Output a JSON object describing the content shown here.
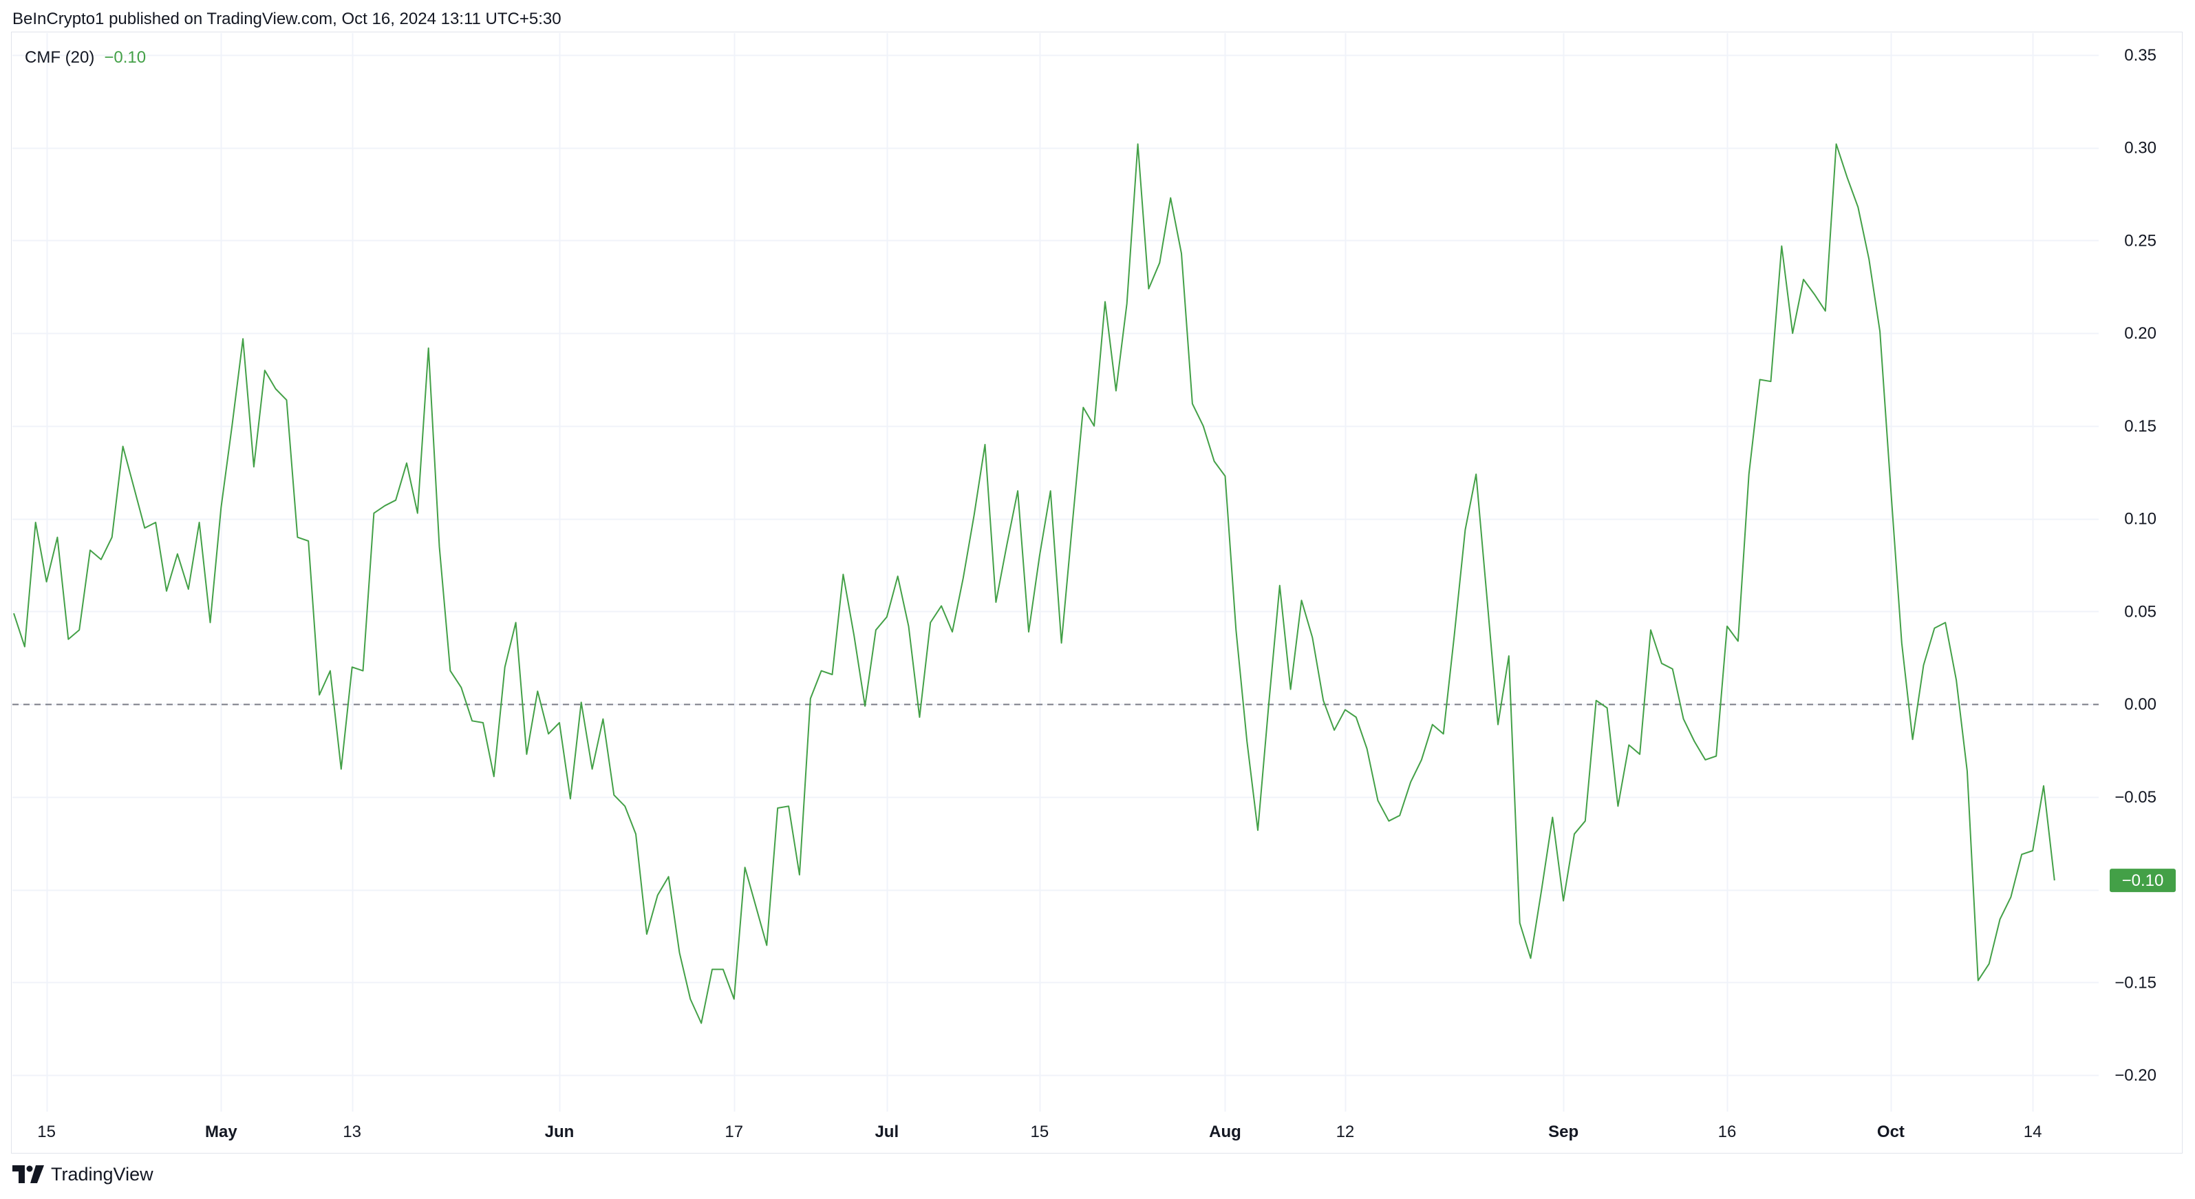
{
  "header": {
    "published_text": "BeInCrypto1 published on TradingView.com, Oct 16, 2024 13:11 UTC+5:30"
  },
  "indicator": {
    "name": "CMF (20)",
    "value": "−0.10"
  },
  "footer": {
    "brand": "TradingView",
    "logo_icon": "tradingview-logo-icon"
  },
  "colors": {
    "line": "#43a047",
    "grid": "#f0f3fa",
    "zero_line": "#787b86",
    "text": "#131722",
    "badge_bg": "#43a047",
    "badge_text": "#ffffff"
  },
  "chart_data": {
    "type": "line",
    "title": "",
    "xlabel": "",
    "ylabel": "",
    "ylim": [
      -0.225,
      0.355
    ],
    "grid": true,
    "zero_line": "dashed",
    "y_ticks": [
      {
        "value": 0.35,
        "label": "0.35"
      },
      {
        "value": 0.3,
        "label": "0.30"
      },
      {
        "value": 0.25,
        "label": "0.25"
      },
      {
        "value": 0.2,
        "label": "0.20"
      },
      {
        "value": 0.15,
        "label": "0.15"
      },
      {
        "value": 0.1,
        "label": "0.10"
      },
      {
        "value": 0.05,
        "label": "0.05"
      },
      {
        "value": 0.0,
        "label": "0.00"
      },
      {
        "value": -0.05,
        "label": "−0.05"
      },
      {
        "value": -0.15,
        "label": "−0.15"
      },
      {
        "value": -0.2,
        "label": "−0.20"
      }
    ],
    "x_ticks": [
      {
        "index": 3,
        "label": "15",
        "bold": false
      },
      {
        "index": 19,
        "label": "May",
        "bold": true
      },
      {
        "index": 31,
        "label": "13",
        "bold": false
      },
      {
        "index": 50,
        "label": "Jun",
        "bold": true
      },
      {
        "index": 66,
        "label": "17",
        "bold": false
      },
      {
        "index": 80,
        "label": "Jul",
        "bold": true
      },
      {
        "index": 94,
        "label": "15",
        "bold": false
      },
      {
        "index": 111,
        "label": "Aug",
        "bold": true
      },
      {
        "index": 122,
        "label": "12",
        "bold": false
      },
      {
        "index": 142,
        "label": "Sep",
        "bold": true
      },
      {
        "index": 157,
        "label": "16",
        "bold": false
      },
      {
        "index": 172,
        "label": "Oct",
        "bold": true
      },
      {
        "index": 185,
        "label": "14",
        "bold": false
      }
    ],
    "last_value": {
      "value": -0.095,
      "label": "−0.10"
    },
    "series": [
      {
        "values": [
          0.049,
          0.031,
          0.098,
          0.066,
          0.09,
          0.035,
          0.04,
          0.083,
          0.078,
          0.09,
          0.139,
          0.117,
          0.095,
          0.098,
          0.061,
          0.081,
          0.062,
          0.098,
          0.044,
          0.106,
          0.15,
          0.197,
          0.128,
          0.18,
          0.17,
          0.164,
          0.09,
          0.088,
          0.005,
          0.018,
          -0.035,
          0.02,
          0.018,
          0.103,
          0.107,
          0.11,
          0.13,
          0.103,
          0.192,
          0.085,
          0.018,
          0.009,
          -0.009,
          -0.01,
          -0.039,
          0.02,
          0.044,
          -0.027,
          0.007,
          -0.016,
          -0.01,
          -0.051,
          0.001,
          -0.035,
          -0.008,
          -0.049,
          -0.055,
          -0.07,
          -0.124,
          -0.103,
          -0.093,
          -0.134,
          -0.159,
          -0.172,
          -0.143,
          -0.143,
          -0.159,
          -0.088,
          -0.109,
          -0.13,
          -0.056,
          -0.055,
          -0.092,
          0.003,
          0.018,
          0.016,
          0.07,
          0.037,
          -0.001,
          0.04,
          0.047,
          0.069,
          0.042,
          -0.007,
          0.044,
          0.053,
          0.039,
          0.068,
          0.102,
          0.14,
          0.055,
          0.086,
          0.115,
          0.039,
          0.08,
          0.115,
          0.033,
          0.097,
          0.16,
          0.15,
          0.217,
          0.169,
          0.216,
          0.302,
          0.224,
          0.238,
          0.273,
          0.243,
          0.162,
          0.15,
          0.131,
          0.123,
          0.04,
          -0.02,
          -0.068,
          0.0,
          0.064,
          0.008,
          0.056,
          0.036,
          0.002,
          -0.014,
          -0.003,
          -0.007,
          -0.024,
          -0.052,
          -0.063,
          -0.06,
          -0.042,
          -0.03,
          -0.011,
          -0.016,
          0.037,
          0.094,
          0.124,
          0.057,
          -0.011,
          0.026,
          -0.118,
          -0.137,
          -0.1,
          -0.061,
          -0.106,
          -0.07,
          -0.063,
          0.002,
          -0.002,
          -0.055,
          -0.022,
          -0.027,
          0.04,
          0.022,
          0.019,
          -0.008,
          -0.02,
          -0.03,
          -0.028,
          0.042,
          0.034,
          0.124,
          0.175,
          0.174,
          0.247,
          0.2,
          0.229,
          0.221,
          0.212,
          0.302,
          0.284,
          0.268,
          0.24,
          0.201,
          0.116,
          0.033,
          -0.019,
          0.021,
          0.041,
          0.044,
          0.013,
          -0.036,
          -0.149,
          -0.14,
          -0.116,
          -0.104,
          -0.081,
          -0.079,
          -0.044,
          -0.095
        ]
      }
    ]
  }
}
